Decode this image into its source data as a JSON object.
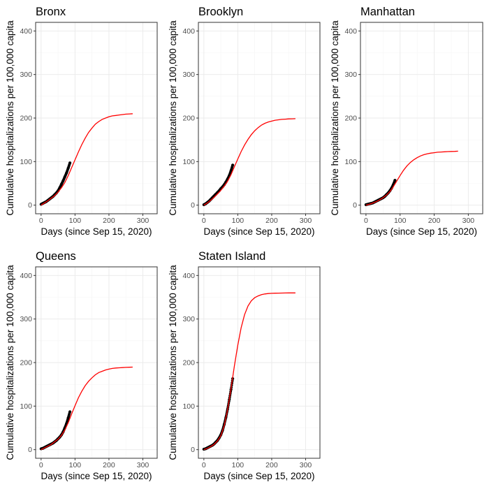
{
  "figure": {
    "colors": {
      "observed": "#000000",
      "fitted": "#ff0000",
      "panel_border": "#333333",
      "grid_major": "#ebebeb",
      "grid_minor": "#f5f5f5",
      "tick_text": "#4d4d4d"
    }
  },
  "chart_data": [
    {
      "type": "line",
      "title": "Bronx",
      "xlabel": "Days (since Sep 15, 2020)",
      "ylabel": "Cumulative hospitalizations per 100,000 capita",
      "xlim": [
        0,
        300
      ],
      "ylim": [
        0,
        400
      ],
      "x_ticks": [
        0,
        100,
        200,
        300
      ],
      "y_ticks": [
        0,
        100,
        200,
        300,
        400
      ],
      "grid": true,
      "legend": "none",
      "series": [
        {
          "kind": "points",
          "x": [
            0,
            5,
            10,
            15,
            20,
            25,
            30,
            35,
            40,
            45,
            50,
            55,
            60,
            65,
            70,
            75,
            80,
            85
          ],
          "y": [
            2,
            4,
            6,
            8,
            11,
            14,
            17,
            20,
            24,
            28,
            33,
            40,
            48,
            56,
            65,
            74,
            85,
            97
          ]
        },
        {
          "kind": "line",
          "x": [
            0,
            10,
            20,
            30,
            40,
            50,
            60,
            70,
            80,
            90,
            100,
            110,
            120,
            130,
            140,
            150,
            160,
            170,
            180,
            190,
            200,
            210,
            220,
            230,
            240,
            250,
            260,
            270
          ],
          "y": [
            0,
            5,
            10,
            16,
            22,
            30,
            40,
            52,
            68,
            86,
            104,
            122,
            139,
            154,
            167,
            177,
            186,
            192,
            197,
            200,
            203,
            205,
            206,
            207,
            208,
            209,
            209.5,
            210
          ]
        }
      ]
    },
    {
      "type": "line",
      "title": "Brooklyn",
      "xlabel": "Days (since Sep 15, 2020)",
      "ylabel": "Cumulative hospitalizations per 100,000 capita",
      "xlim": [
        0,
        300
      ],
      "ylim": [
        0,
        400
      ],
      "x_ticks": [
        0,
        100,
        200,
        300
      ],
      "y_ticks": [
        0,
        100,
        200,
        300,
        400
      ],
      "grid": true,
      "legend": "none",
      "series": [
        {
          "kind": "points",
          "x": [
            0,
            5,
            10,
            15,
            20,
            25,
            30,
            35,
            40,
            45,
            50,
            55,
            60,
            65,
            70,
            75,
            80,
            85
          ],
          "y": [
            1,
            3,
            6,
            9,
            13,
            17,
            21,
            25,
            29,
            33,
            38,
            42,
            47,
            53,
            60,
            68,
            79,
            92
          ]
        },
        {
          "kind": "line",
          "x": [
            0,
            10,
            20,
            30,
            40,
            50,
            60,
            70,
            80,
            90,
            100,
            110,
            120,
            130,
            140,
            150,
            160,
            170,
            180,
            190,
            200,
            210,
            220,
            230,
            240,
            250,
            260,
            270
          ],
          "y": [
            0,
            5,
            11,
            18,
            26,
            34,
            44,
            55,
            70,
            88,
            106,
            123,
            138,
            151,
            162,
            171,
            178,
            184,
            188,
            191,
            193,
            195,
            196,
            197,
            197.5,
            198,
            198.3,
            198.5
          ]
        }
      ]
    },
    {
      "type": "line",
      "title": "Manhattan",
      "xlabel": "Days (since Sep 15, 2020)",
      "ylabel": "Cumulative hospitalizations per 100,000 capita",
      "xlim": [
        0,
        300
      ],
      "ylim": [
        0,
        400
      ],
      "x_ticks": [
        0,
        100,
        200,
        300
      ],
      "y_ticks": [
        0,
        100,
        200,
        300,
        400
      ],
      "grid": true,
      "legend": "none",
      "series": [
        {
          "kind": "points",
          "x": [
            0,
            5,
            10,
            15,
            20,
            25,
            30,
            35,
            40,
            45,
            50,
            55,
            60,
            65,
            70,
            75,
            80,
            85
          ],
          "y": [
            1,
            2,
            3,
            4,
            5,
            7,
            9,
            11,
            13,
            15,
            17,
            20,
            24,
            28,
            33,
            39,
            47,
            57
          ]
        },
        {
          "kind": "line",
          "x": [
            0,
            10,
            20,
            30,
            40,
            50,
            60,
            70,
            80,
            90,
            100,
            110,
            120,
            130,
            140,
            150,
            160,
            170,
            180,
            190,
            200,
            210,
            220,
            230,
            240,
            250,
            260,
            270
          ],
          "y": [
            0,
            2,
            5,
            8,
            12,
            17,
            23,
            31,
            42,
            55,
            68,
            80,
            90,
            98,
            104,
            109,
            113,
            116,
            118,
            119.5,
            120.5,
            121.5,
            122,
            122.5,
            123,
            123.3,
            123.5,
            124
          ]
        }
      ]
    },
    {
      "type": "line",
      "title": "Queens",
      "xlabel": "Days (since Sep 15, 2020)",
      "ylabel": "Cumulative hospitalizations per 100,000 capita",
      "xlim": [
        0,
        300
      ],
      "ylim": [
        0,
        400
      ],
      "x_ticks": [
        0,
        100,
        200,
        300
      ],
      "y_ticks": [
        0,
        100,
        200,
        300,
        400
      ],
      "grid": true,
      "legend": "none",
      "series": [
        {
          "kind": "points",
          "x": [
            0,
            5,
            10,
            15,
            20,
            25,
            30,
            35,
            40,
            45,
            50,
            55,
            60,
            65,
            70,
            75,
            80,
            85
          ],
          "y": [
            2,
            3,
            5,
            7,
            9,
            11,
            13,
            15,
            18,
            21,
            25,
            29,
            34,
            41,
            50,
            60,
            73,
            87
          ]
        },
        {
          "kind": "line",
          "x": [
            0,
            10,
            20,
            30,
            40,
            50,
            60,
            70,
            80,
            90,
            100,
            110,
            120,
            130,
            140,
            150,
            160,
            170,
            180,
            190,
            200,
            210,
            220,
            230,
            240,
            250,
            260,
            270
          ],
          "y": [
            0,
            4,
            8,
            12,
            18,
            24,
            33,
            45,
            62,
            82,
            101,
            119,
            134,
            147,
            157,
            165,
            172,
            177,
            180,
            183,
            185,
            186.5,
            187.5,
            188,
            188.5,
            189,
            189.3,
            189.5
          ]
        }
      ]
    },
    {
      "type": "line",
      "title": "Staten Island",
      "xlabel": "Days (since Sep 15, 2020)",
      "ylabel": "Cumulative hospitalizations per 100,000 capita",
      "xlim": [
        0,
        300
      ],
      "ylim": [
        0,
        400
      ],
      "x_ticks": [
        0,
        100,
        200,
        300
      ],
      "y_ticks": [
        0,
        100,
        200,
        300,
        400
      ],
      "grid": true,
      "legend": "none",
      "series": [
        {
          "kind": "points",
          "x": [
            0,
            5,
            10,
            15,
            20,
            25,
            30,
            35,
            40,
            45,
            50,
            55,
            60,
            65,
            70,
            75,
            80,
            85
          ],
          "y": [
            1,
            2,
            4,
            6,
            8,
            10,
            13,
            17,
            21,
            27,
            34,
            44,
            58,
            74,
            93,
            115,
            138,
            163
          ]
        },
        {
          "kind": "line",
          "x": [
            0,
            10,
            20,
            30,
            40,
            50,
            60,
            70,
            80,
            90,
            100,
            110,
            120,
            130,
            140,
            150,
            160,
            170,
            180,
            190,
            200,
            210,
            220,
            230,
            240,
            250,
            260,
            270
          ],
          "y": [
            0,
            3,
            7,
            12,
            20,
            32,
            55,
            92,
            140,
            192,
            240,
            280,
            310,
            330,
            342,
            349,
            353,
            356,
            357.5,
            358.5,
            359,
            359.3,
            359.5,
            359.7,
            359.8,
            359.9,
            360,
            360
          ]
        }
      ]
    }
  ]
}
